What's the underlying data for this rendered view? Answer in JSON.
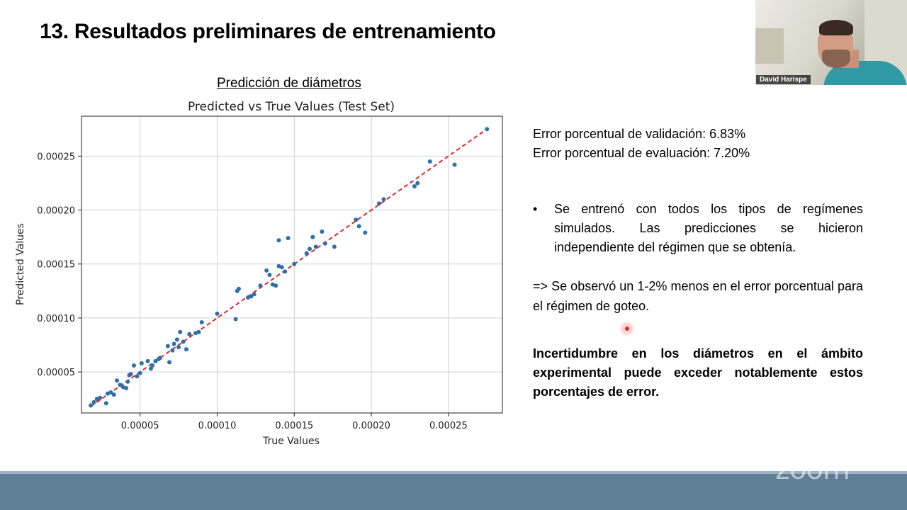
{
  "slide": {
    "title": "13. Resultados preliminares de entrenamiento",
    "chart_caption": "Predicción de diámetros"
  },
  "stats": {
    "validation": "Error porcentual de validación: 6.83%",
    "evaluation": "Error porcentual de evaluación: 7.20%"
  },
  "bullet": {
    "symbol": "•",
    "text": "Se entrenó con todos los tipos de regímenes simulados. Las predicciones se hicieron independiente del régimen que se obtenía."
  },
  "observation": "=> Se observó un 1-2% menos en el error porcentual para el régimen de goteo.",
  "conclusion": "Incertidumbre en los diámetros en el ámbito experimental puede exceder notablemente estos porcentajes de error.",
  "webcam": {
    "participant_name": "David Harispe"
  },
  "zoom_logo": "zoom",
  "colors": {
    "points": "#2f6fa8",
    "fit_line": "#e0262b",
    "bottom_bar": "#5f7f97"
  },
  "chart_data": {
    "type": "scatter",
    "title": "Predicted vs True Values (Test Set)",
    "xlabel": "True Values",
    "ylabel": "Predicted Values",
    "xlim": [
      1.2e-05,
      0.000285
    ],
    "ylim": [
      1.2e-05,
      0.000287
    ],
    "xticks": [
      "0.00005",
      "0.00010",
      "0.00015",
      "0.00020",
      "0.00025"
    ],
    "xtick_values": [
      5e-05,
      0.0001,
      0.00015,
      0.0002,
      0.00025
    ],
    "yticks": [
      "0.00005",
      "0.00010",
      "0.00015",
      "0.00020",
      "0.00025"
    ],
    "ytick_values": [
      5e-05,
      0.0001,
      0.00015,
      0.0002,
      0.00025
    ],
    "grid": true,
    "reference_line": {
      "from": [
        1.8e-05,
        1.8e-05
      ],
      "to": [
        0.000275,
        0.000275
      ],
      "style": "dashed"
    },
    "x": [
      1.8e-05,
      2e-05,
      2.2e-05,
      2.4e-05,
      2.8e-05,
      2.9e-05,
      3.1e-05,
      3.3e-05,
      3.5e-05,
      3.7e-05,
      3.9e-05,
      4.1e-05,
      4.2e-05,
      4.3e-05,
      4.4e-05,
      4.6e-05,
      4.8e-05,
      5e-05,
      5.1e-05,
      5.5e-05,
      5.7e-05,
      5.8e-05,
      6e-05,
      6.2e-05,
      6.3e-05,
      6.8e-05,
      6.9e-05,
      7.1e-05,
      7.2e-05,
      7.4e-05,
      7.5e-05,
      7.6e-05,
      7.8e-05,
      8e-05,
      8.2e-05,
      8.6e-05,
      8.8e-05,
      9e-05,
      0.0001,
      0.000112,
      0.000113,
      0.000114,
      0.00012,
      0.000122,
      0.000124,
      0.000128,
      0.000132,
      0.000134,
      0.000136,
      0.000138,
      0.00014,
      0.00014,
      0.000142,
      0.000144,
      0.000146,
      0.00015,
      0.000158,
      0.00016,
      0.000162,
      0.000164,
      0.000168,
      0.00017,
      0.000176,
      0.00019,
      0.000192,
      0.000196,
      0.000205,
      0.000208,
      0.000228,
      0.00023,
      0.000238,
      0.000254,
      0.000275
    ],
    "y": [
      1.9e-05,
      2.2e-05,
      2.5e-05,
      2.6e-05,
      2.1e-05,
      3e-05,
      3.1e-05,
      2.9e-05,
      4.2e-05,
      3.8e-05,
      3.6e-05,
      3.5e-05,
      4.1e-05,
      4.7e-05,
      4.8e-05,
      5.6e-05,
      4.6e-05,
      4.9e-05,
      5.8e-05,
      6e-05,
      5.3e-05,
      5.6e-05,
      6e-05,
      6.2e-05,
      6.3e-05,
      7.4e-05,
      5.9e-05,
      7e-05,
      7.6e-05,
      8e-05,
      7.3e-05,
      8.7e-05,
      7.8e-05,
      7.1e-05,
      8.5e-05,
      8.6e-05,
      8.7e-05,
      9.6e-05,
      0.000104,
      9.9e-05,
      0.000125,
      0.000127,
      0.000119,
      0.00012,
      0.000122,
      0.00013,
      0.000144,
      0.00014,
      0.000131,
      0.00013,
      0.000148,
      0.000172,
      0.000147,
      0.000143,
      0.000174,
      0.00015,
      0.00016,
      0.000164,
      0.000175,
      0.000166,
      0.00018,
      0.000169,
      0.000166,
      0.000191,
      0.000185,
      0.000179,
      0.000206,
      0.00021,
      0.000222,
      0.000225,
      0.000245,
      0.000242,
      0.000275
    ]
  }
}
